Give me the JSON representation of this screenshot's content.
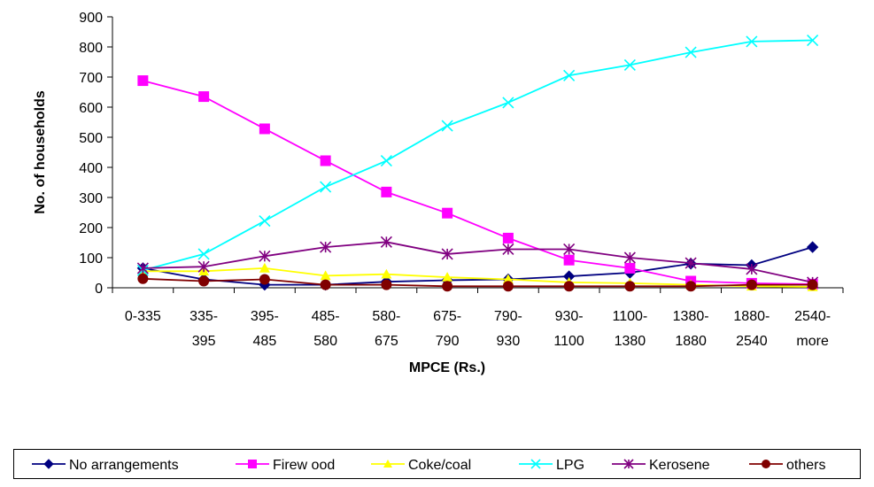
{
  "chart_data": {
    "type": "line",
    "xlabel": "MPCE (Rs.)",
    "ylabel": "No. of households",
    "ylim": [
      0,
      900
    ],
    "yticks": [
      0,
      100,
      200,
      300,
      400,
      500,
      600,
      700,
      800,
      900
    ],
    "grid": false,
    "legend_position": "bottom",
    "categories": [
      [
        "0-335"
      ],
      [
        "335-",
        "395"
      ],
      [
        "395-",
        "485"
      ],
      [
        "485-",
        "580"
      ],
      [
        "580-",
        "675"
      ],
      [
        "675-",
        "790"
      ],
      [
        "790-",
        "930"
      ],
      [
        "930-",
        "1100"
      ],
      [
        "1100-",
        "1380"
      ],
      [
        "1380-",
        "1880"
      ],
      [
        "1880-",
        "2540"
      ],
      [
        "2540-",
        "more"
      ]
    ],
    "series": [
      {
        "name": "No arrangements",
        "color": "#000080",
        "marker": "diamond",
        "values": [
          65,
          28,
          10,
          10,
          20,
          25,
          28,
          38,
          50,
          80,
          75,
          135
        ]
      },
      {
        "name": "Firew ood",
        "color": "#FF00FF",
        "marker": "square",
        "values": [
          688,
          635,
          528,
          422,
          318,
          248,
          165,
          92,
          65,
          22,
          15,
          12
        ]
      },
      {
        "name": "Coke/coal",
        "color": "#FFFF00",
        "marker": "triangle",
        "values": [
          55,
          55,
          65,
          40,
          45,
          35,
          28,
          18,
          15,
          10,
          5,
          3
        ]
      },
      {
        "name": "LPG",
        "color": "#00FFFF",
        "marker": "x",
        "values": [
          58,
          112,
          222,
          335,
          422,
          538,
          615,
          705,
          740,
          782,
          818,
          822
        ]
      },
      {
        "name": "Kerosene",
        "color": "#800080",
        "marker": "star",
        "values": [
          65,
          70,
          105,
          135,
          152,
          112,
          128,
          128,
          100,
          82,
          62,
          18
        ]
      },
      {
        "name": "others",
        "color": "#800000",
        "marker": "circle",
        "values": [
          30,
          22,
          28,
          10,
          10,
          5,
          5,
          5,
          5,
          5,
          10,
          10
        ]
      }
    ]
  }
}
